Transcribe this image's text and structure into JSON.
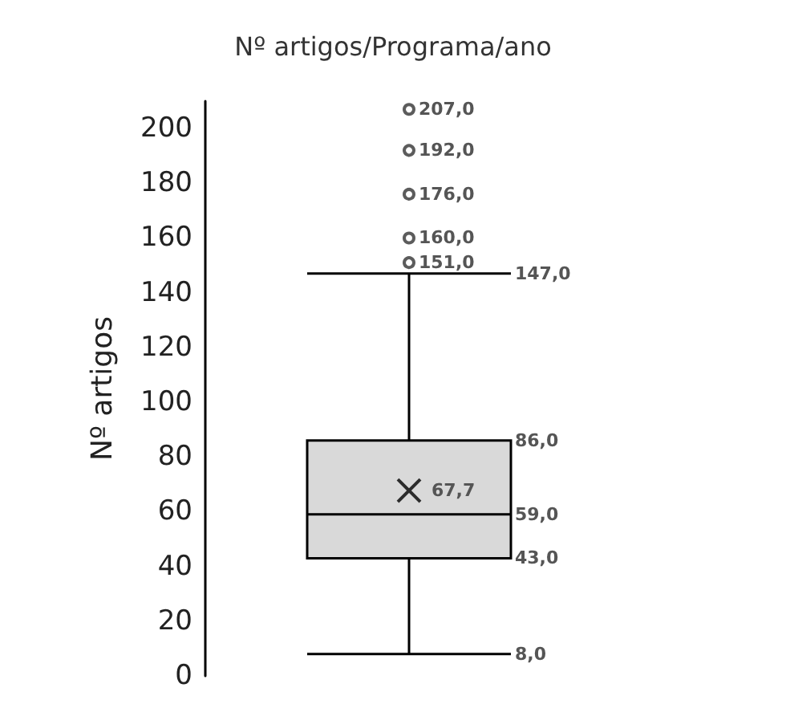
{
  "chart_data": {
    "type": "box",
    "title": "Nº artigos/Programa/ano",
    "ylabel": "Nº artigos",
    "categories": [
      null
    ],
    "boxes": [
      {
        "low": 8,
        "q1": 43,
        "median": 59,
        "q3": 86,
        "high": 147,
        "mean": 67.7,
        "outliers": [
          207,
          192,
          176,
          160,
          151
        ]
      }
    ],
    "color": "#d9d9d9",
    "ylim": [
      0,
      210
    ],
    "yticks": [
      0,
      20,
      40,
      60,
      80,
      100,
      120,
      140,
      160,
      180,
      200
    ],
    "grid": false,
    "marker": "cross",
    "annotations": [
      "207,0",
      "192,0",
      "176,0",
      "160,0",
      "151,0",
      "147,0",
      "86,0",
      "67,7",
      "59,0",
      "43,0",
      "8,0"
    ]
  }
}
